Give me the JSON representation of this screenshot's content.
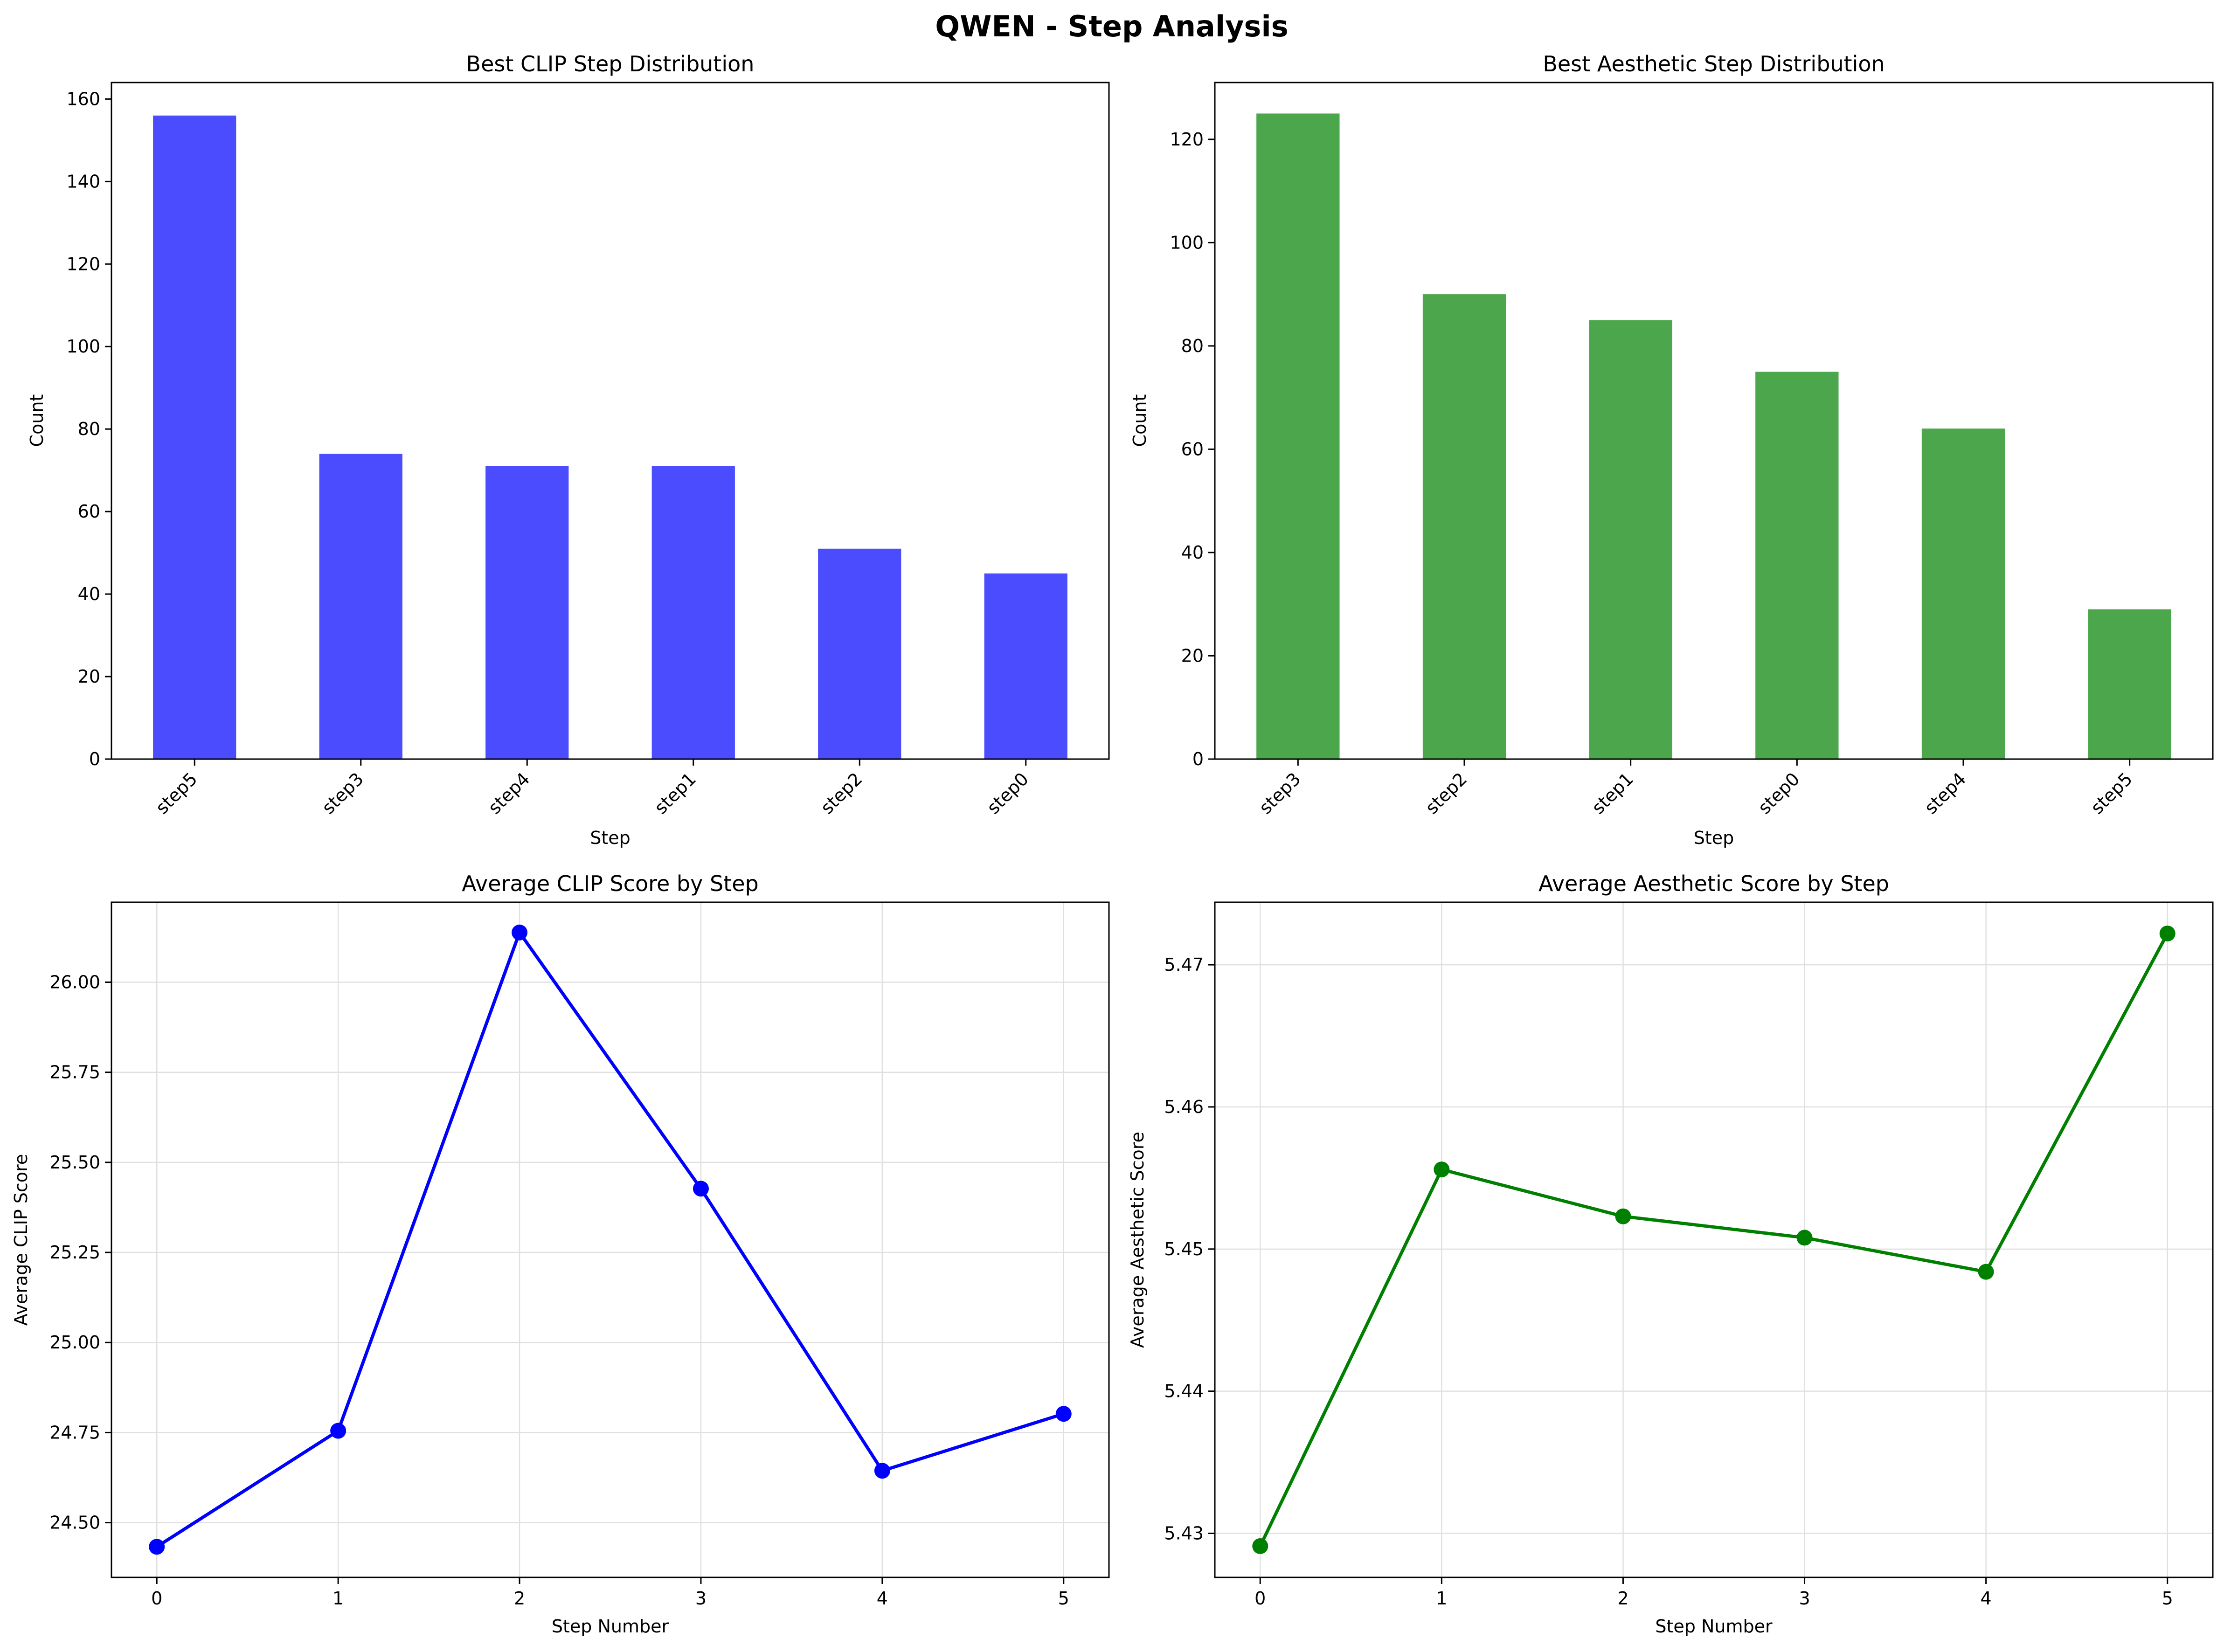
{
  "figure": {
    "title": "QWEN - Step Analysis"
  },
  "chart_data": [
    {
      "type": "bar",
      "title": "Best CLIP Step Distribution",
      "xlabel": "Step",
      "ylabel": "Count",
      "categories": [
        "step5",
        "step3",
        "step4",
        "step1",
        "step2",
        "step0"
      ],
      "values": [
        156,
        74,
        71,
        71,
        51,
        45
      ],
      "ylim": [
        0,
        164
      ],
      "yticks": [
        0,
        20,
        40,
        60,
        80,
        100,
        120,
        140,
        160
      ],
      "color": "#4c4cff",
      "grid": false
    },
    {
      "type": "bar",
      "title": "Best Aesthetic Step Distribution",
      "xlabel": "Step",
      "ylabel": "Count",
      "categories": [
        "step3",
        "step2",
        "step1",
        "step0",
        "step4",
        "step5"
      ],
      "values": [
        125,
        90,
        85,
        75,
        64,
        29
      ],
      "ylim": [
        0,
        131
      ],
      "yticks": [
        0,
        20,
        40,
        60,
        80,
        100,
        120
      ],
      "color": "#4ca64c",
      "grid": false
    },
    {
      "type": "line",
      "title": "Average CLIP Score by Step",
      "xlabel": "Step Number",
      "ylabel": "Average CLIP Score",
      "x": [
        0,
        1,
        2,
        3,
        4,
        5
      ],
      "values": [
        24.433,
        24.755,
        26.138,
        25.427,
        24.644,
        24.802
      ],
      "xlim": [
        -0.25,
        5.25
      ],
      "ylim": [
        24.348,
        26.222
      ],
      "xticks": [
        0,
        1,
        2,
        3,
        4,
        5
      ],
      "yticks": [
        24.5,
        24.75,
        25.0,
        25.25,
        25.5,
        25.75,
        26.0
      ],
      "ytick_labels": [
        "24.50",
        "24.75",
        "25.00",
        "25.25",
        "25.50",
        "25.75",
        "26.00"
      ],
      "color": "#0000ff",
      "grid": true
    },
    {
      "type": "line",
      "title": "Average Aesthetic Score by Step",
      "xlabel": "Step Number",
      "ylabel": "Average Aesthetic Score",
      "x": [
        0,
        1,
        2,
        3,
        4,
        5
      ],
      "values": [
        5.4291,
        5.4556,
        5.4523,
        5.4508,
        5.4484,
        5.4722
      ],
      "xlim": [
        -0.25,
        5.25
      ],
      "ylim": [
        5.4269,
        5.4744
      ],
      "xticks": [
        0,
        1,
        2,
        3,
        4,
        5
      ],
      "yticks": [
        5.43,
        5.44,
        5.45,
        5.46,
        5.47
      ],
      "ytick_labels": [
        "5.43",
        "5.44",
        "5.45",
        "5.46",
        "5.47"
      ],
      "color": "#008000",
      "grid": true
    }
  ]
}
